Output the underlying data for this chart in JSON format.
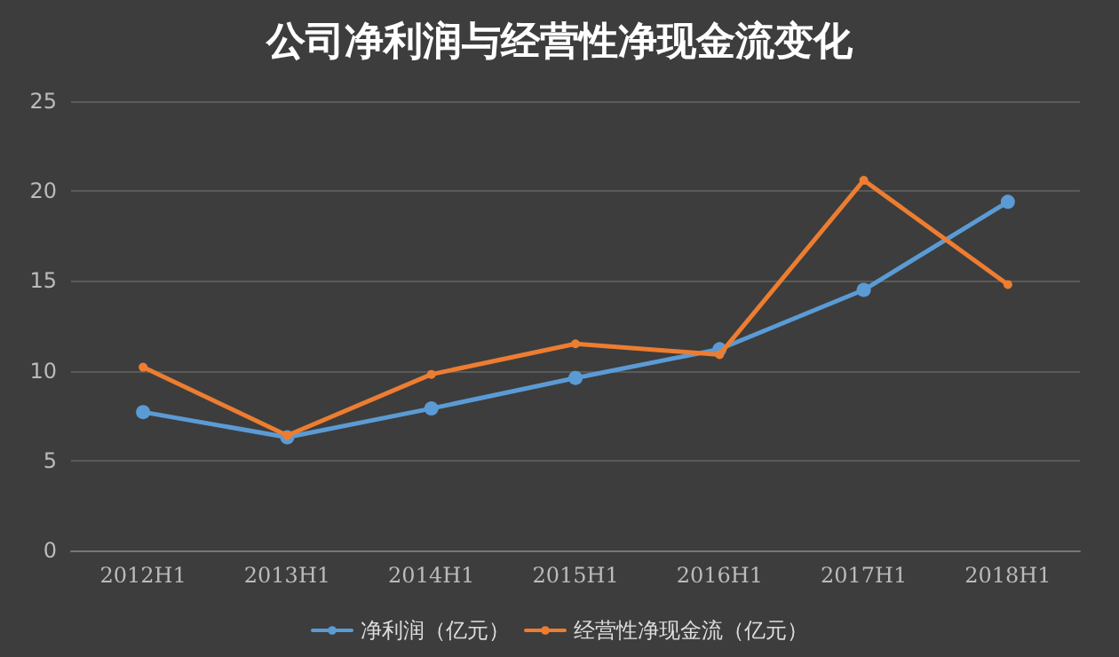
{
  "chart_data": {
    "type": "line",
    "title": "公司净利润与经营性净现金流变化",
    "categories": [
      "2012H1",
      "2013H1",
      "2014H1",
      "2015H1",
      "2016H1",
      "2017H1",
      "2018H1"
    ],
    "series": [
      {
        "name": "净利润（亿元）",
        "color": "#5b9bd5",
        "values": [
          7.7,
          6.3,
          7.9,
          9.6,
          11.2,
          14.5,
          19.4
        ]
      },
      {
        "name": "经营性净现金流（亿元）",
        "color": "#ed7d31",
        "values": [
          10.2,
          6.4,
          9.8,
          11.5,
          10.9,
          20.6,
          14.8
        ]
      }
    ],
    "ylim": [
      0,
      25
    ],
    "yticks": [
      0,
      5,
      10,
      15,
      20,
      25
    ],
    "grid": "y",
    "legend": "bottom",
    "marker": "circle",
    "line_style": "solid"
  }
}
